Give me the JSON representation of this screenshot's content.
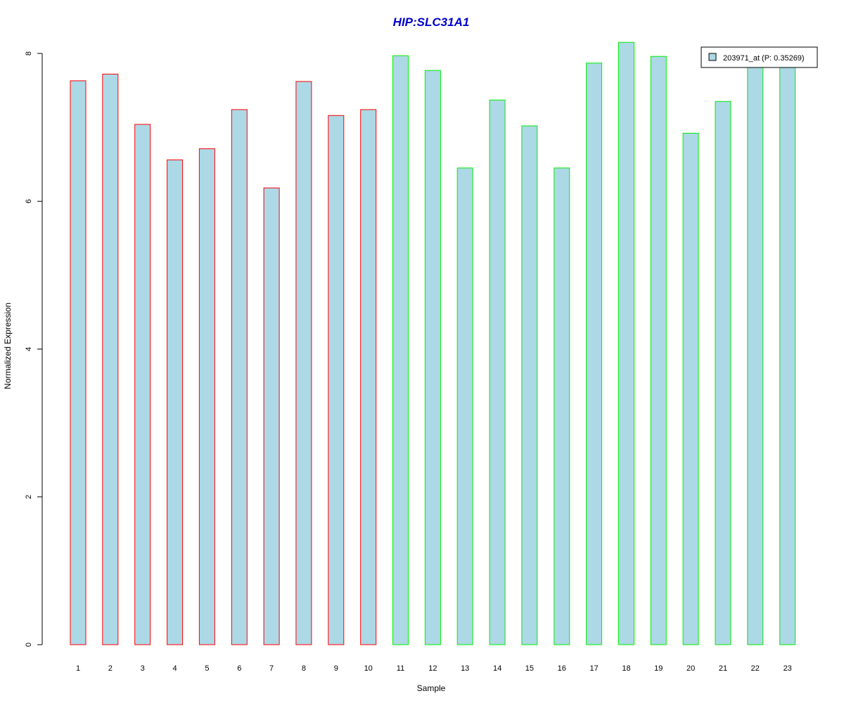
{
  "chart_data": {
    "type": "bar",
    "title": "HIP:SLC31A1",
    "title_color": "#0000cc",
    "xlabel": "Sample",
    "ylabel": "Normalized Expression",
    "ylim": [
      0,
      8
    ],
    "yticks": [
      "0",
      "2",
      "4",
      "6",
      "8"
    ],
    "categories": [
      "1",
      "2",
      "3",
      "4",
      "5",
      "6",
      "7",
      "8",
      "9",
      "10",
      "11",
      "12",
      "13",
      "14",
      "15",
      "16",
      "17",
      "18",
      "19",
      "20",
      "21",
      "22",
      "23"
    ],
    "values": [
      7.63,
      7.72,
      7.04,
      6.56,
      6.71,
      7.24,
      6.18,
      7.62,
      7.16,
      7.24,
      7.97,
      7.77,
      6.45,
      7.37,
      7.02,
      6.45,
      7.87,
      8.15,
      7.96,
      6.92,
      7.35,
      7.85,
      7.85
    ],
    "fill_color": "#add8e6",
    "border_colors": [
      "#ff0000",
      "#ff0000",
      "#ff0000",
      "#ff0000",
      "#ff0000",
      "#ff0000",
      "#ff0000",
      "#ff0000",
      "#ff0000",
      "#ff0000",
      "#00ee00",
      "#00ee00",
      "#00ee00",
      "#00ee00",
      "#00ee00",
      "#00ee00",
      "#00ee00",
      "#00ee00",
      "#00ee00",
      "#00ee00",
      "#00ee00",
      "#00ee00",
      "#00ee00"
    ],
    "legend": {
      "label": "203971_at (P: 0.35269)",
      "placement": "top-right"
    },
    "grid": false
  }
}
